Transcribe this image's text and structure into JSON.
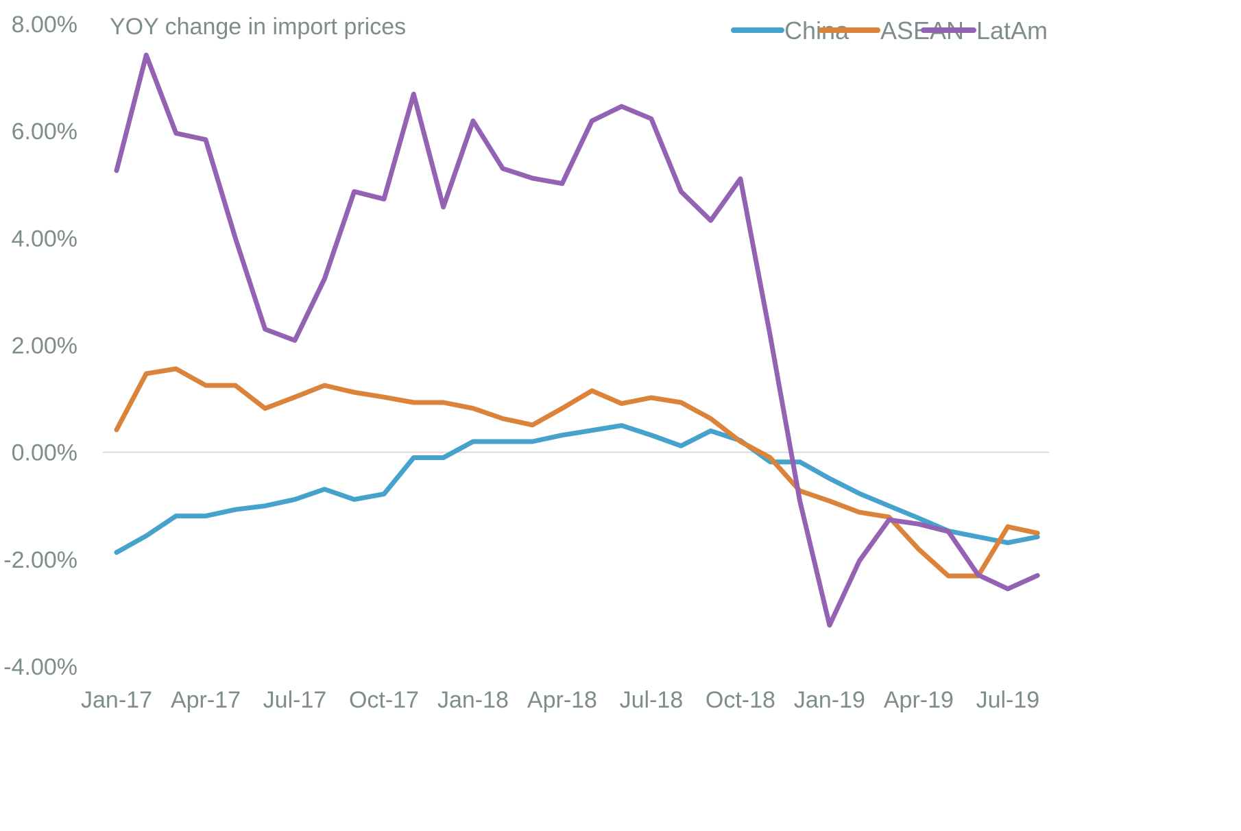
{
  "chart_data": {
    "type": "line",
    "title": "YOY change in import prices",
    "xlabel": "",
    "ylabel": "",
    "ylim": [
      -4,
      8
    ],
    "y_ticks": [
      8,
      6,
      4,
      2,
      0,
      -2,
      -4
    ],
    "y_tick_labels": [
      "8.00%",
      "6.00%",
      "4.00%",
      "2.00%",
      "0.00%",
      "-2.00%",
      "-4.00%"
    ],
    "x": [
      "Jan-17",
      "Feb-17",
      "Mar-17",
      "Apr-17",
      "May-17",
      "Jun-17",
      "Jul-17",
      "Aug-17",
      "Sep-17",
      "Oct-17",
      "Nov-17",
      "Dec-17",
      "Jan-18",
      "Feb-18",
      "Mar-18",
      "Apr-18",
      "May-18",
      "Jun-18",
      "Jul-18",
      "Aug-18",
      "Sep-18",
      "Oct-18",
      "Nov-18",
      "Dec-18",
      "Jan-19",
      "Feb-19",
      "Mar-19",
      "Apr-19",
      "May-19",
      "Jun-19",
      "Jul-19",
      "Aug-19"
    ],
    "x_tick_labels": [
      "Jan-17",
      "Apr-17",
      "Jul-17",
      "Oct-17",
      "Jan-18",
      "Apr-18",
      "Jul-18",
      "Oct-18",
      "Jan-19",
      "Apr-19",
      "Jul-19"
    ],
    "x_tick_step": 3,
    "grid": false,
    "zero_line": true,
    "legend_position": "top-right",
    "series": [
      {
        "name": "China",
        "color": "#45a2cc",
        "values": [
          -1.87,
          -1.56,
          -1.19,
          -1.19,
          -1.07,
          -1.0,
          -0.88,
          -0.69,
          -0.88,
          -0.78,
          -0.1,
          -0.1,
          0.2,
          0.2,
          0.2,
          0.32,
          0.41,
          0.5,
          0.32,
          0.12,
          0.4,
          0.22,
          -0.18,
          -0.18,
          -0.49,
          -0.77,
          -1.0,
          -1.23,
          -1.47,
          -1.58,
          -1.69,
          -1.58
        ]
      },
      {
        "name": "ASEAN",
        "color": "#db823b",
        "values": [
          0.42,
          1.47,
          1.56,
          1.25,
          1.25,
          0.82,
          1.03,
          1.25,
          1.12,
          1.03,
          0.93,
          0.93,
          0.82,
          0.63,
          0.51,
          0.82,
          1.15,
          0.91,
          1.02,
          0.93,
          0.63,
          0.2,
          -0.1,
          -0.72,
          -0.91,
          -1.12,
          -1.21,
          -1.81,
          -2.31,
          -2.31,
          -1.39,
          -1.51
        ]
      },
      {
        "name": "LatAm",
        "color": "#9462b2",
        "values": [
          5.26,
          7.42,
          5.96,
          5.84,
          4.0,
          2.3,
          2.09,
          3.24,
          4.87,
          4.73,
          6.69,
          4.58,
          6.19,
          5.3,
          5.12,
          5.02,
          6.19,
          6.46,
          6.23,
          4.87,
          4.33,
          5.11,
          2.18,
          -0.91,
          -3.23,
          -2.03,
          -1.26,
          -1.34,
          -1.48,
          -2.29,
          -2.55,
          -2.3
        ]
      }
    ]
  }
}
